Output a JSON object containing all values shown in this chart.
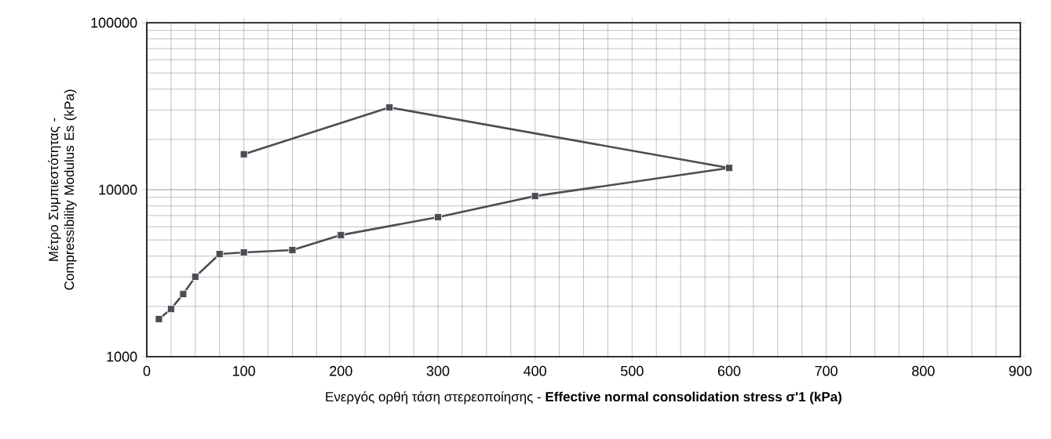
{
  "chart_data": {
    "type": "line",
    "xlabel": "Ενεργός ορθή τάση στερεοποίησης -  **Effective normal consolidation stress  σ'1 (kPa)**",
    "ylabel": "Μέτρο Συμπιεστότητας - Compressibility Modulus Es (kPa)",
    "x": [
      12.5,
      25,
      37.5,
      50,
      75,
      100,
      150,
      200,
      300,
      400,
      600,
      250,
      100
    ],
    "series": [
      {
        "color": "#4a4e54",
        "values": [
          1680,
          1930,
          2370,
          3010,
          4120,
          4210,
          4350,
          5350,
          6850,
          9160,
          13500,
          31100,
          16300
        ]
      }
    ],
    "xlim": [
      0,
      900
    ],
    "xticks": [
      0,
      100,
      200,
      300,
      400,
      500,
      600,
      700,
      800,
      900
    ],
    "ylim": [
      1000,
      100000
    ],
    "yticks": [
      1000,
      10000,
      100000
    ],
    "log": "y",
    "grid": true,
    "marker": "square",
    "line_style": "solid"
  }
}
